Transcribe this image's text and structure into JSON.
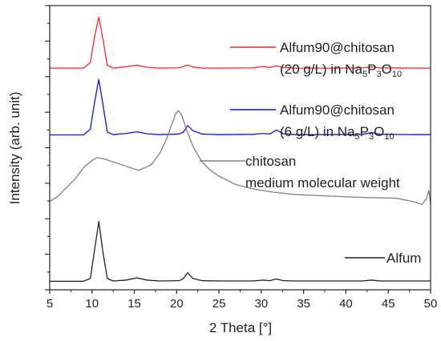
{
  "chart_data": {
    "type": "line",
    "xlabel": "2 Theta [°]",
    "ylabel": "Intensity (arb. unit)",
    "xlim": [
      5,
      50
    ],
    "x_ticks": [
      "5",
      "10",
      "15",
      "20",
      "25",
      "30",
      "35",
      "40",
      "45",
      "50"
    ],
    "grid": false,
    "legend_entries": [
      {
        "id": "red",
        "color": "#ff2020",
        "line1": "Alfum90@chitosan",
        "line2_prefix": "(20 g/L) in Na",
        "sub1": "5",
        "mid1": "P",
        "sub2": "3",
        "mid2": "O",
        "sub3": "10"
      },
      {
        "id": "blue",
        "color": "#1010e0",
        "line1": "Alfum90@chitosan",
        "line2_prefix": "(6 g/L) in Na",
        "sub1": "5",
        "mid1": "P",
        "sub2": "3",
        "mid2": "O",
        "sub3": "10"
      },
      {
        "id": "gray",
        "color": "#808080",
        "line1": "chitosan",
        "line2": "medium molecular weight"
      },
      {
        "id": "black",
        "color": "#202020",
        "line1": "Alfum"
      }
    ],
    "series": [
      {
        "id": "red",
        "color": "#ff2020",
        "baseline": 0.78,
        "x": [
          5,
          9,
          9.8,
          10.3,
          10.8,
          11.3,
          11.8,
          12.5,
          14,
          15.3,
          16.5,
          18,
          20.3,
          20.8,
          21.3,
          21.9,
          23,
          25,
          29,
          30.2,
          31,
          31.8,
          32.6,
          34,
          38,
          42,
          43,
          44,
          48,
          50
        ],
        "y": [
          0.78,
          0.78,
          0.8,
          0.89,
          0.96,
          0.88,
          0.79,
          0.78,
          0.785,
          0.79,
          0.783,
          0.78,
          0.781,
          0.786,
          0.791,
          0.784,
          0.78,
          0.78,
          0.781,
          0.786,
          0.782,
          0.788,
          0.782,
          0.78,
          0.78,
          0.781,
          0.784,
          0.781,
          0.78,
          0.78
        ]
      },
      {
        "id": "blue",
        "color": "#1010e0",
        "baseline": 0.545,
        "x": [
          5,
          9,
          9.8,
          10.3,
          10.8,
          11.3,
          11.8,
          12.5,
          14,
          15.3,
          16.5,
          18,
          20.3,
          20.8,
          21.3,
          21.9,
          23,
          25,
          29,
          30.2,
          31,
          31.8,
          32.6,
          34,
          38,
          42,
          43,
          44,
          48,
          50
        ],
        "y": [
          0.545,
          0.545,
          0.565,
          0.66,
          0.74,
          0.65,
          0.555,
          0.546,
          0.55,
          0.556,
          0.549,
          0.546,
          0.548,
          0.555,
          0.578,
          0.56,
          0.548,
          0.546,
          0.547,
          0.55,
          0.548,
          0.562,
          0.549,
          0.546,
          0.546,
          0.547,
          0.553,
          0.547,
          0.546,
          0.546
        ]
      },
      {
        "id": "gray",
        "color": "#808080",
        "baseline": 0.31,
        "x": [
          5,
          6,
          7,
          8,
          9,
          10,
          10.6,
          11.5,
          12.5,
          14,
          15.5,
          17,
          18,
          18.8,
          19.4,
          19.9,
          20.2,
          20.6,
          21.2,
          22,
          23,
          24,
          25,
          27,
          29,
          31,
          34,
          38,
          42,
          46,
          48,
          49,
          49.5,
          49.8,
          50
        ],
        "y": [
          0.31,
          0.33,
          0.36,
          0.39,
          0.43,
          0.455,
          0.465,
          0.46,
          0.45,
          0.435,
          0.42,
          0.44,
          0.48,
          0.53,
          0.58,
          0.62,
          0.63,
          0.615,
          0.56,
          0.5,
          0.45,
          0.42,
          0.4,
          0.37,
          0.355,
          0.345,
          0.335,
          0.33,
          0.325,
          0.322,
          0.31,
          0.3,
          0.32,
          0.35,
          0.3
        ]
      },
      {
        "id": "black",
        "color": "#202020",
        "baseline": 0.03,
        "x": [
          5,
          9,
          9.8,
          10.3,
          10.8,
          11.3,
          11.8,
          12.5,
          14,
          15.3,
          16.5,
          18,
          20.3,
          20.8,
          21.3,
          21.9,
          23,
          25,
          29,
          30.2,
          31,
          31.8,
          32.6,
          34,
          38,
          42,
          43,
          44,
          48,
          50
        ],
        "y": [
          0.03,
          0.03,
          0.04,
          0.14,
          0.24,
          0.13,
          0.04,
          0.031,
          0.034,
          0.042,
          0.034,
          0.031,
          0.032,
          0.04,
          0.06,
          0.04,
          0.032,
          0.031,
          0.031,
          0.034,
          0.032,
          0.038,
          0.032,
          0.031,
          0.031,
          0.031,
          0.034,
          0.031,
          0.031,
          0.031
        ]
      }
    ]
  }
}
